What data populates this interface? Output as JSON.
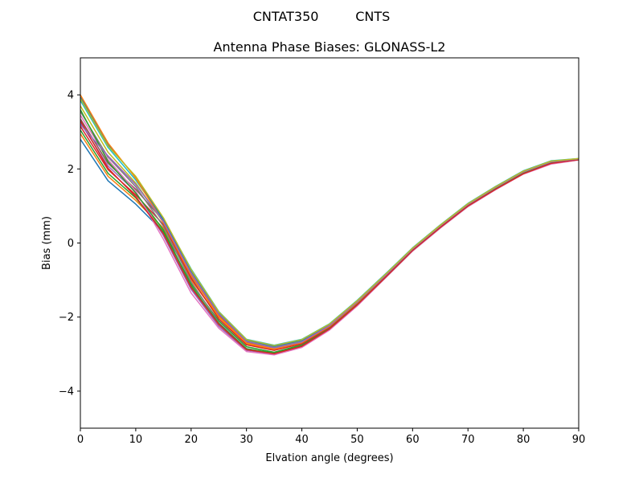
{
  "figure": {
    "suptitle": "CNTAT350         CNTS"
  },
  "chart_data": {
    "type": "line",
    "title": "Antenna Phase Biases: GLONASS-L2",
    "xlabel": "Elvation angle (degrees)",
    "ylabel": "Bias (mm)",
    "xlim": [
      0,
      90
    ],
    "ylim": [
      -5,
      5
    ],
    "xticks": [
      0,
      10,
      20,
      30,
      40,
      50,
      60,
      70,
      80,
      90
    ],
    "yticks": [
      -4,
      -2,
      0,
      2,
      4
    ],
    "xtick_labels": [
      "0",
      "10",
      "20",
      "30",
      "40",
      "50",
      "60",
      "70",
      "80",
      "90"
    ],
    "ytick_labels": [
      "−4",
      "−2",
      "0",
      "2",
      "4"
    ],
    "grid": false,
    "legend": "none",
    "x": [
      0,
      5,
      10,
      15,
      20,
      25,
      30,
      35,
      40,
      45,
      50,
      55,
      60,
      65,
      70,
      75,
      80,
      85,
      90
    ],
    "series": [
      {
        "color": "#1f77b4",
        "values": [
          2.8,
          1.68,
          1.05,
          0.3,
          -0.9,
          -1.95,
          -2.62,
          -2.78,
          -2.62,
          -2.2,
          -1.55,
          -0.85,
          -0.15,
          0.48,
          1.05,
          1.5,
          1.9,
          2.18,
          2.27
        ]
      },
      {
        "color": "#ff7f0e",
        "values": [
          2.95,
          1.8,
          1.15,
          0.4,
          -1.0,
          -2.0,
          -2.72,
          -2.88,
          -2.7,
          -2.26,
          -1.62,
          -0.9,
          -0.17,
          0.45,
          1.03,
          1.48,
          1.92,
          2.2,
          2.26
        ]
      },
      {
        "color": "#2ca02c",
        "values": [
          3.05,
          1.88,
          1.22,
          0.3,
          -1.1,
          -2.1,
          -2.8,
          -2.95,
          -2.75,
          -2.3,
          -1.66,
          -0.93,
          -0.2,
          0.42,
          1.0,
          1.46,
          1.88,
          2.15,
          2.25
        ]
      },
      {
        "color": "#d62728",
        "values": [
          3.15,
          1.98,
          1.3,
          0.5,
          -0.95,
          -2.05,
          -2.75,
          -2.9,
          -2.72,
          -2.27,
          -1.63,
          -0.91,
          -0.18,
          0.44,
          1.02,
          1.47,
          1.9,
          2.18,
          2.26
        ]
      },
      {
        "color": "#9467bd",
        "values": [
          3.25,
          2.08,
          1.38,
          0.2,
          -1.25,
          -2.25,
          -2.9,
          -3.0,
          -2.8,
          -2.33,
          -1.68,
          -0.95,
          -0.21,
          0.41,
          0.99,
          1.45,
          1.87,
          2.14,
          2.25
        ]
      },
      {
        "color": "#8c564b",
        "values": [
          3.35,
          2.15,
          1.45,
          0.6,
          -0.85,
          -1.95,
          -2.68,
          -2.85,
          -2.68,
          -2.24,
          -1.6,
          -0.89,
          -0.16,
          0.46,
          1.04,
          1.49,
          1.91,
          2.19,
          2.27
        ]
      },
      {
        "color": "#e377c2",
        "values": [
          3.45,
          2.25,
          1.4,
          0.1,
          -1.35,
          -2.3,
          -2.93,
          -3.02,
          -2.82,
          -2.35,
          -1.7,
          -0.96,
          -0.22,
          0.4,
          0.98,
          1.44,
          1.86,
          2.13,
          2.24
        ]
      },
      {
        "color": "#7f7f7f",
        "values": [
          3.55,
          2.32,
          1.52,
          0.45,
          -1.05,
          -2.15,
          -2.85,
          -2.98,
          -2.78,
          -2.31,
          -1.66,
          -0.93,
          -0.19,
          0.43,
          1.01,
          1.46,
          1.89,
          2.16,
          2.25
        ]
      },
      {
        "color": "#bcbd22",
        "values": [
          3.7,
          2.45,
          1.62,
          0.55,
          -0.8,
          -1.9,
          -2.65,
          -2.82,
          -2.66,
          -2.22,
          -1.58,
          -0.88,
          -0.15,
          0.47,
          1.05,
          1.51,
          1.93,
          2.2,
          2.27
        ]
      },
      {
        "color": "#17becf",
        "values": [
          3.85,
          2.58,
          1.7,
          0.65,
          -0.7,
          -1.85,
          -2.6,
          -2.76,
          -2.6,
          -2.18,
          -1.55,
          -0.85,
          -0.13,
          0.49,
          1.07,
          1.53,
          1.95,
          2.22,
          2.28
        ]
      },
      {
        "color": "#1f77b4",
        "values": [
          3.95,
          2.65,
          1.78,
          0.62,
          -0.75,
          -1.88,
          -2.62,
          -2.79,
          -2.63,
          -2.2,
          -1.57,
          -0.87,
          -0.14,
          0.48,
          1.06,
          1.52,
          1.94,
          2.21,
          2.27
        ]
      },
      {
        "color": "#ff7f0e",
        "values": [
          4.0,
          2.7,
          1.75,
          0.55,
          -0.88,
          -1.98,
          -2.7,
          -2.86,
          -2.69,
          -2.25,
          -1.61,
          -0.9,
          -0.17,
          0.45,
          1.03,
          1.49,
          1.91,
          2.19,
          2.26
        ]
      },
      {
        "color": "#2ca02c",
        "values": [
          3.6,
          2.2,
          1.35,
          0.35,
          -1.15,
          -2.18,
          -2.86,
          -2.97,
          -2.77,
          -2.31,
          -1.66,
          -0.94,
          -0.2,
          0.42,
          1.0,
          1.46,
          1.88,
          2.16,
          2.25
        ]
      },
      {
        "color": "#d62728",
        "values": [
          3.3,
          2.02,
          1.25,
          0.25,
          -1.2,
          -2.2,
          -2.88,
          -2.99,
          -2.79,
          -2.32,
          -1.67,
          -0.94,
          -0.2,
          0.42,
          1.0,
          1.45,
          1.87,
          2.15,
          2.25
        ]
      },
      {
        "color": "#9467bd",
        "values": [
          3.2,
          2.35,
          1.58,
          0.58,
          -0.82,
          -1.92,
          -2.66,
          -2.83,
          -2.67,
          -2.23,
          -1.59,
          -0.89,
          -0.16,
          0.46,
          1.04,
          1.5,
          1.92,
          2.19,
          2.27
        ]
      },
      {
        "color": "#bcbd22",
        "values": [
          3.9,
          2.62,
          1.8,
          0.68,
          -0.72,
          -1.86,
          -2.61,
          -2.77,
          -2.61,
          -2.19,
          -1.56,
          -0.86,
          -0.14,
          0.48,
          1.06,
          1.52,
          1.94,
          2.21,
          2.28
        ]
      }
    ]
  }
}
